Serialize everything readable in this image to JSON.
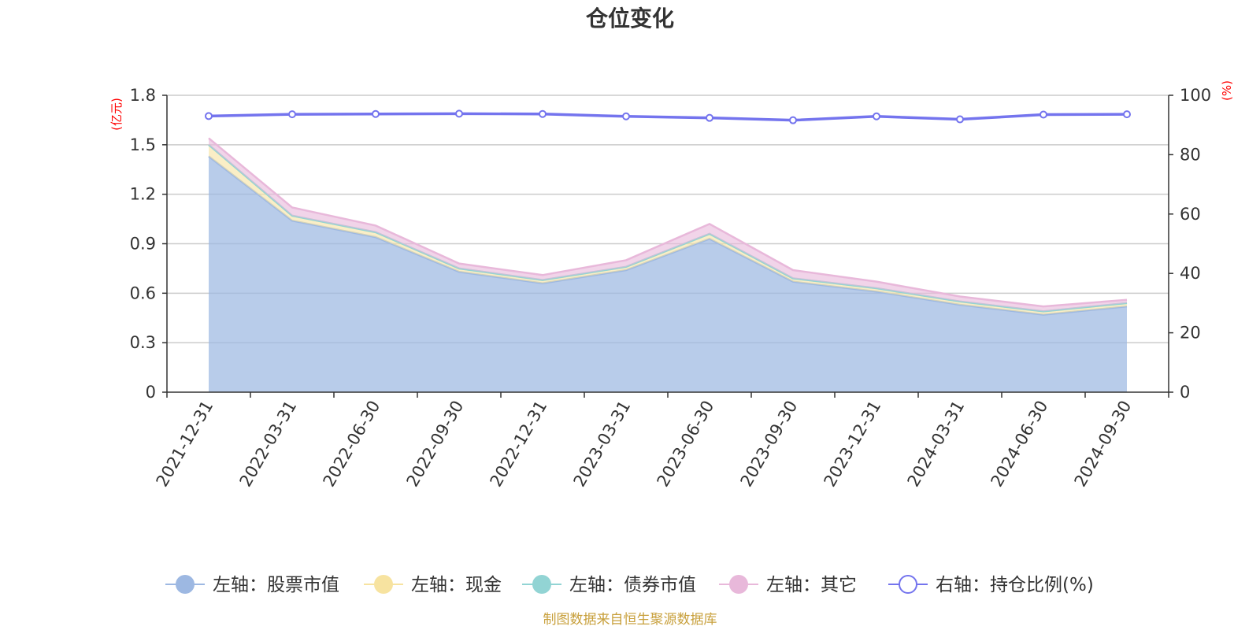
{
  "chart_data": {
    "type": "area",
    "title": "仓位变化",
    "y_left_unit": "(亿元)",
    "y_right_unit": "(%)",
    "y_left_ticks": [
      "0",
      "0.3",
      "0.6",
      "0.9",
      "1.2",
      "1.5",
      "1.8"
    ],
    "y_right_ticks": [
      "0",
      "20",
      "40",
      "60",
      "80",
      "100"
    ],
    "y_left_range": [
      0,
      1.8
    ],
    "y_right_range": [
      0,
      100
    ],
    "grid": true,
    "legend_position": "bottom",
    "categories": [
      "2021-12-31",
      "2022-03-31",
      "2022-06-30",
      "2022-09-30",
      "2022-12-31",
      "2023-03-31",
      "2023-06-30",
      "2023-09-30",
      "2023-12-31",
      "2024-03-31",
      "2024-06-30",
      "2024-09-30"
    ],
    "series": [
      {
        "name": "左轴：股票市值",
        "axis": "left",
        "stacked": true,
        "color": "#9db8e2",
        "values": [
          1.43,
          1.04,
          0.94,
          0.73,
          0.66,
          0.74,
          0.93,
          0.67,
          0.61,
          0.53,
          0.47,
          0.52
        ]
      },
      {
        "name": "左轴：现金",
        "axis": "left",
        "stacked": true,
        "color": "#f7e3a0",
        "values": [
          0.07,
          0.03,
          0.03,
          0.02,
          0.02,
          0.02,
          0.03,
          0.02,
          0.02,
          0.02,
          0.02,
          0.02
        ]
      },
      {
        "name": "左轴：债券市值",
        "axis": "left",
        "stacked": true,
        "color": "#92d4d4",
        "values": [
          0,
          0,
          0,
          0,
          0,
          0,
          0,
          0,
          0,
          0,
          0,
          0
        ]
      },
      {
        "name": "左轴：其它",
        "axis": "left",
        "stacked": true,
        "color": "#e8b8da",
        "values": [
          0.04,
          0.05,
          0.04,
          0.03,
          0.03,
          0.04,
          0.06,
          0.05,
          0.04,
          0.03,
          0.03,
          0.02
        ]
      },
      {
        "name": "右轴：持仓比例(%)",
        "axis": "right",
        "type": "line",
        "color": "#7474ee",
        "values": [
          93.0,
          93.6,
          93.7,
          93.8,
          93.7,
          92.9,
          92.4,
          91.6,
          92.9,
          91.9,
          93.5,
          93.6
        ]
      }
    ]
  },
  "source_note": "制图数据来自恒生聚源数据库"
}
